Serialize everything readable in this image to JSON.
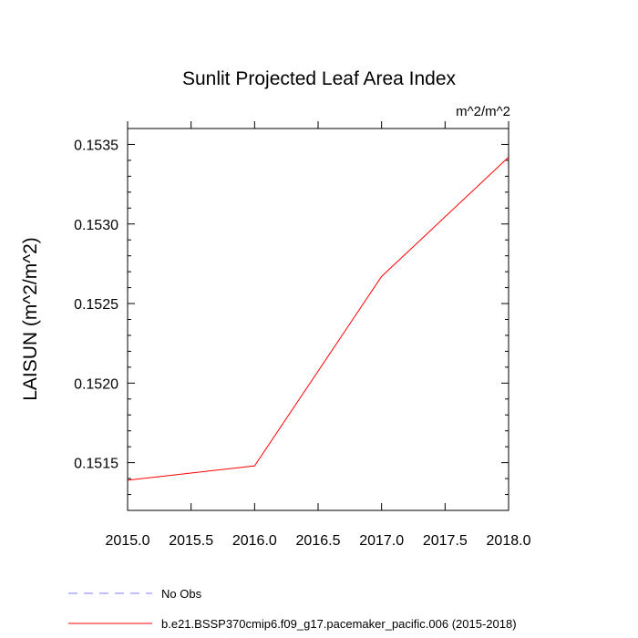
{
  "chart_data": {
    "type": "line",
    "title": "Sunlit Projected Leaf Area Index",
    "units_label": "m^2/m^2",
    "ylabel": "LAISUN  (m^2/m^2)",
    "xlabel": "",
    "xlim": [
      2015.0,
      2018.0
    ],
    "ylim": [
      0.1512,
      0.1536
    ],
    "x_ticks": [
      2015.0,
      2015.5,
      2016.0,
      2016.5,
      2017.0,
      2017.5,
      2018.0
    ],
    "x_tick_labels": [
      "2015.0",
      "2015.5",
      "2016.0",
      "2016.5",
      "2017.0",
      "2017.5",
      "2018.0"
    ],
    "y_ticks": [
      0.1515,
      0.152,
      0.1525,
      0.153,
      0.1535
    ],
    "y_tick_labels": [
      "0.1515",
      "0.1520",
      "0.1525",
      "0.1530",
      "0.1535"
    ],
    "grid": false,
    "series": [
      {
        "name": "b.e21.BSSP370cmip6.f09_g17.pacemaker_pacific.006 (2015-2018)",
        "color": "#ff0000",
        "dash": "solid",
        "x": [
          2015,
          2016,
          2017,
          2018
        ],
        "y": [
          0.15139,
          0.15148,
          0.15267,
          0.15342
        ]
      }
    ],
    "legend": [
      {
        "label": "No Obs",
        "color": "#7f7fff",
        "dash": "dashed"
      },
      {
        "label": "b.e21.BSSP370cmip6.f09_g17.pacemaker_pacific.006 (2015-2018)",
        "color": "#ff0000",
        "dash": "solid"
      }
    ],
    "legend_position": "bottom"
  }
}
